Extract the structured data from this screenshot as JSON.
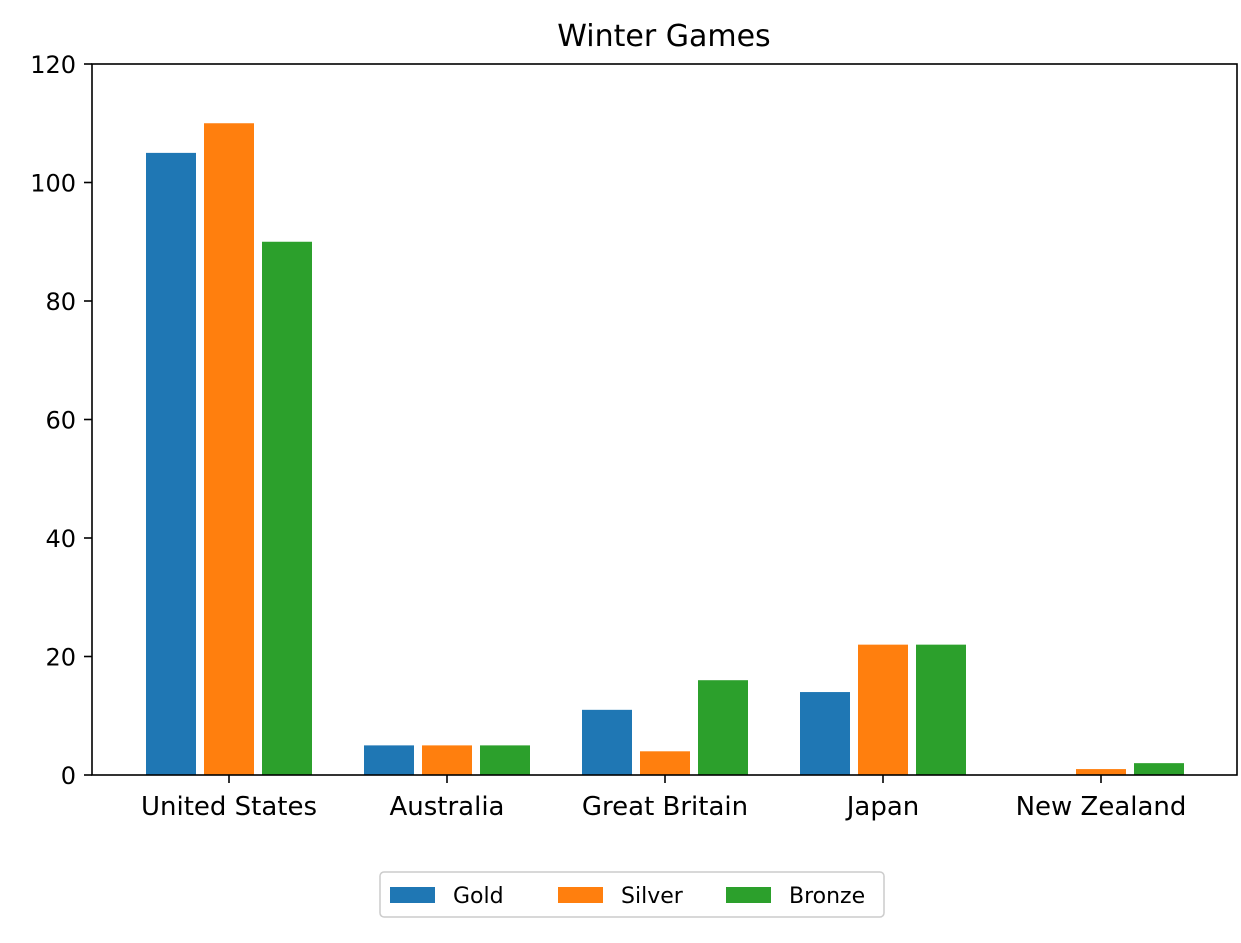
{
  "chart_data": {
    "type": "bar",
    "title": "Winter Games",
    "xlabel": "",
    "ylabel": "",
    "categories": [
      "United States",
      "Australia",
      "Great Britain",
      "Japan",
      "New Zealand"
    ],
    "series": [
      {
        "name": "Gold",
        "color": "#1f77b4",
        "values": [
          105,
          5,
          11,
          14,
          0
        ]
      },
      {
        "name": "Silver",
        "color": "#ff7f0e",
        "values": [
          110,
          5,
          4,
          22,
          1
        ]
      },
      {
        "name": "Bronze",
        "color": "#2ca02c",
        "values": [
          90,
          5,
          16,
          22,
          2
        ]
      }
    ],
    "ylim": [
      0,
      120
    ],
    "yticks": [
      0,
      20,
      40,
      60,
      80,
      100,
      120
    ],
    "grid": false,
    "legend_position": "bottom-center"
  }
}
